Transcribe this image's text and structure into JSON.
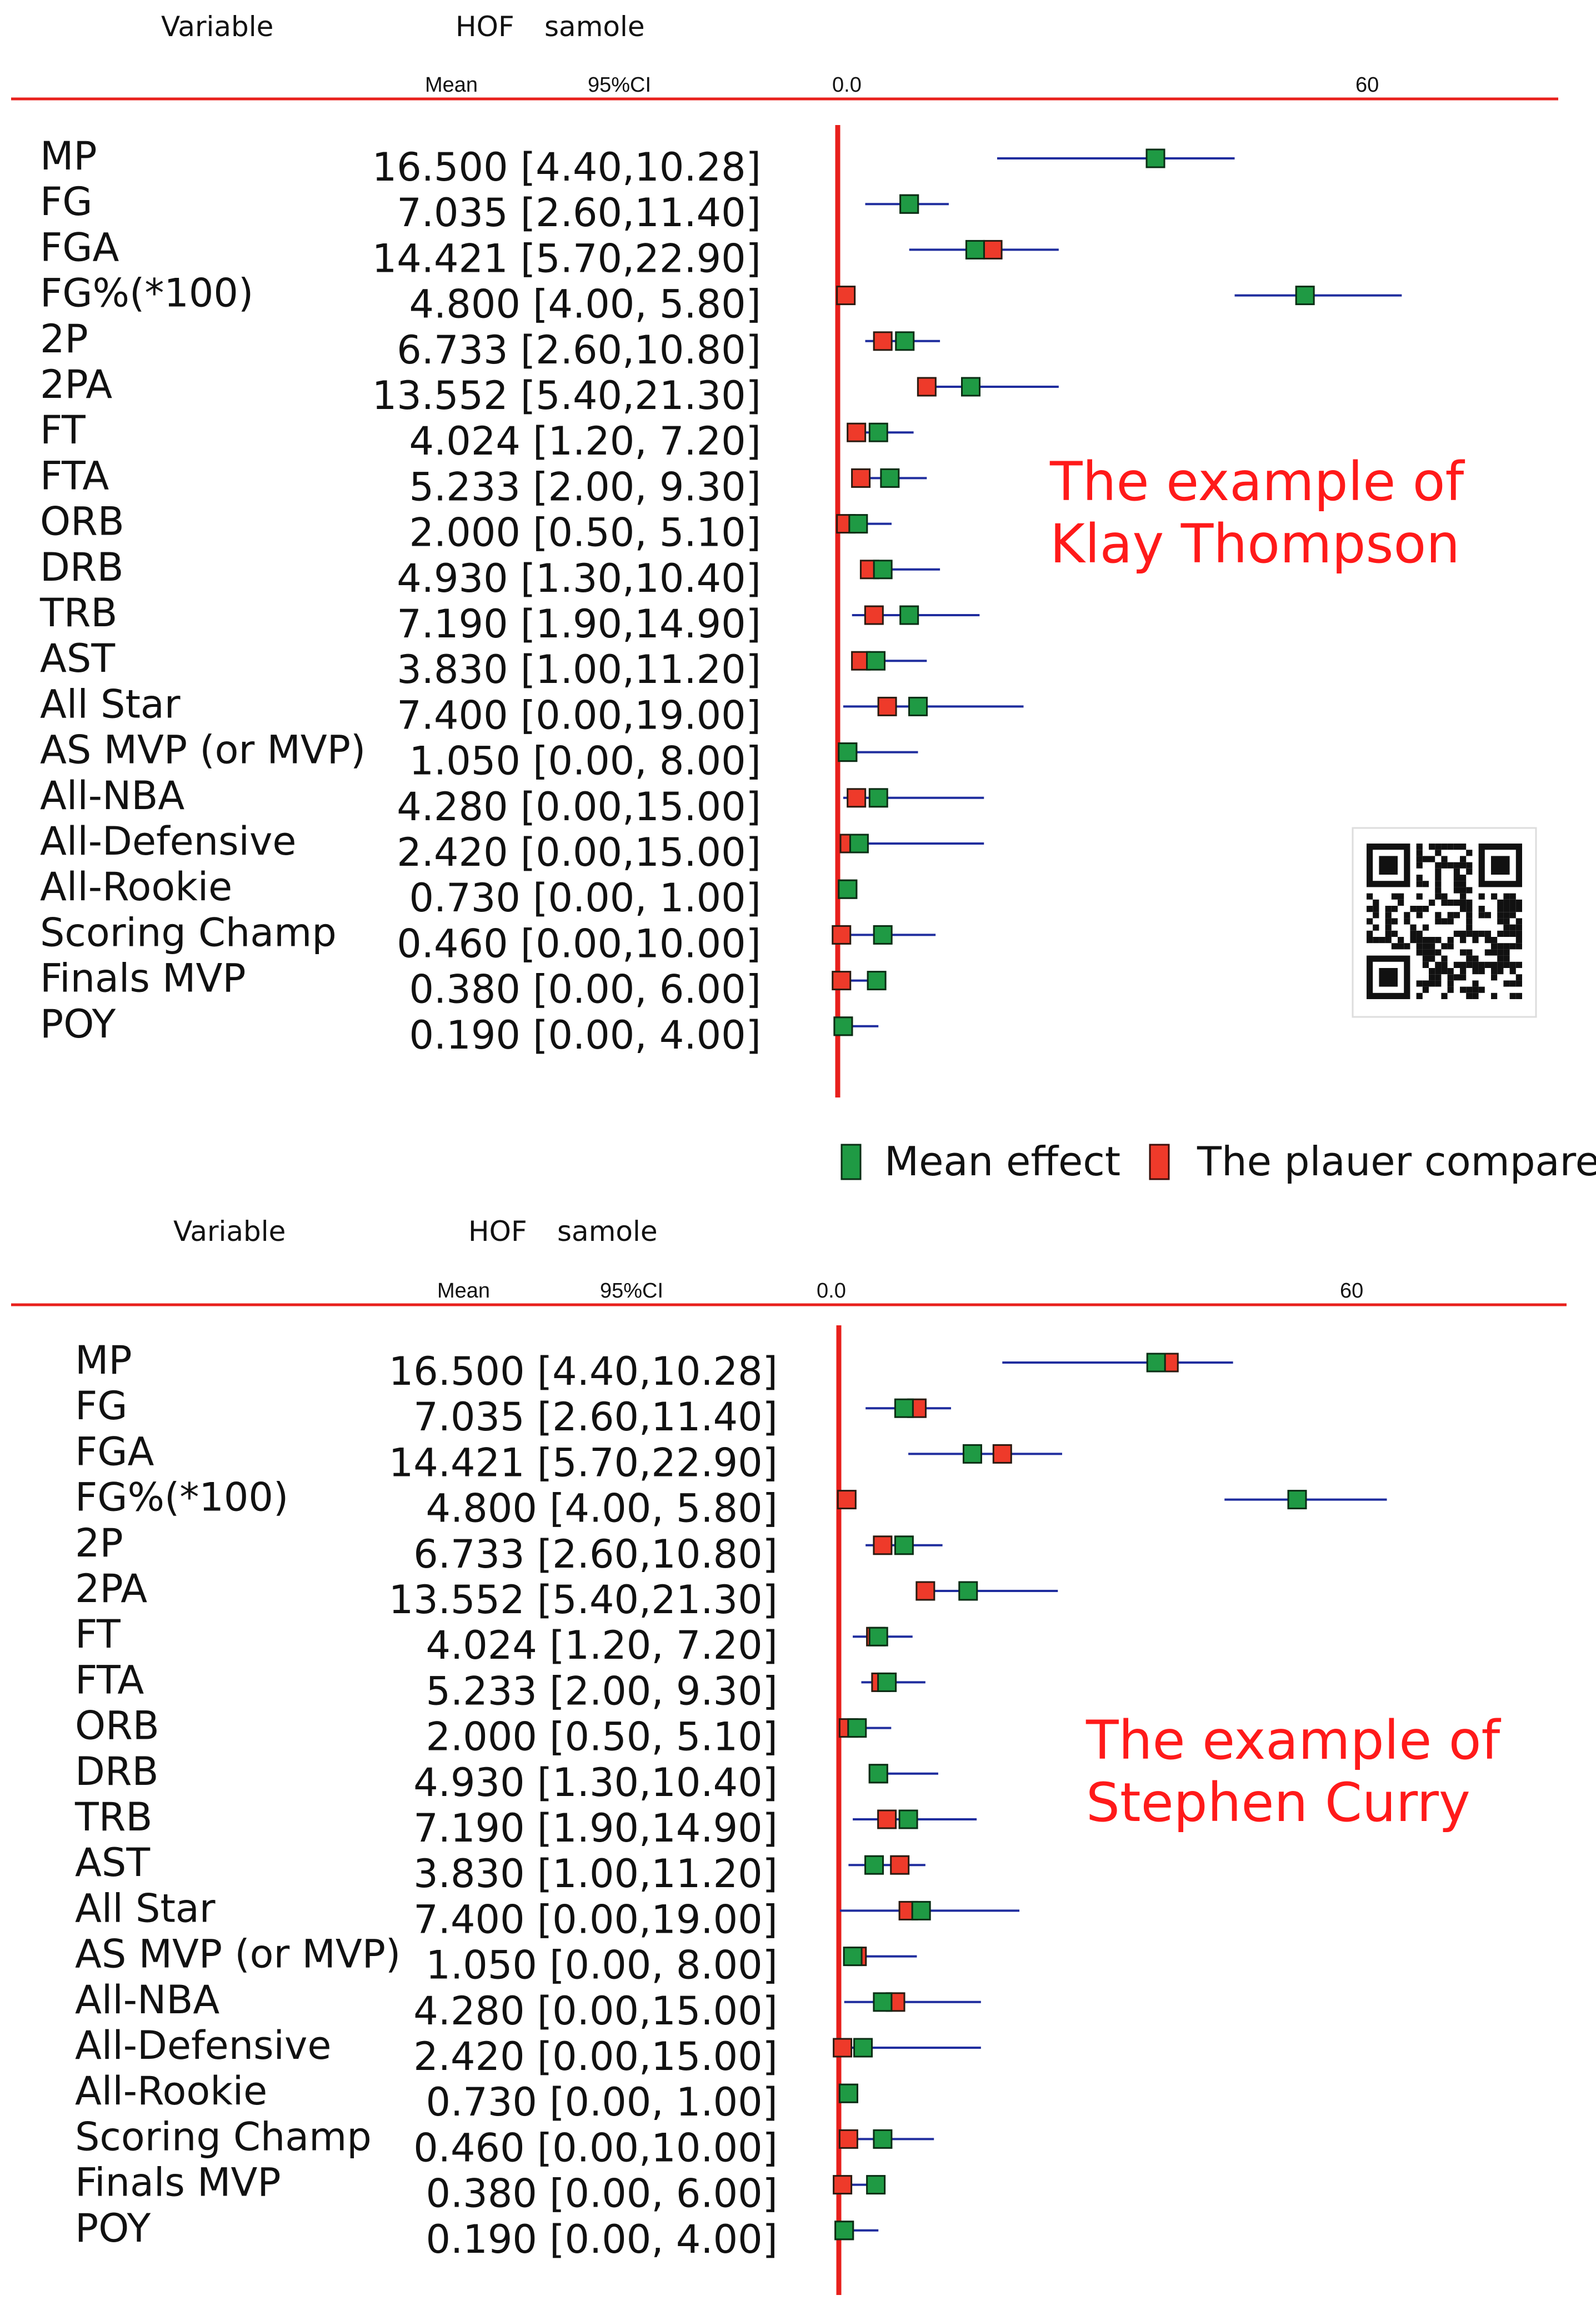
{
  "legend": {
    "mean_label": "Mean effect",
    "player_label": "The plauer compared",
    "mean_color": "#1f9a44",
    "player_color": "#ee3a2a"
  },
  "colors": {
    "zero_line": "#e8201c",
    "ci_line": "#1f2d9e",
    "header_rule": "#e8201c"
  },
  "icons": {
    "qr": "qr-code-icon"
  },
  "chart_data": [
    {
      "type": "forest",
      "annotation": [
        "The example of",
        "Klay Thompson"
      ],
      "header": {
        "col1": "Variable",
        "col2": "HOF",
        "col3": "samole",
        "mean": "Mean",
        "ci": "95%CI",
        "tick_left": "0.0",
        "tick_right": "60"
      },
      "xlim": [
        0,
        60
      ],
      "rows": [
        {
          "variable": "MP",
          "value": "16.500 [4.40,10.28]",
          "ci": [
            18,
            45
          ],
          "mean": 36,
          "player": 36
        },
        {
          "variable": "FG",
          "value": "7.035 [2.60,11.40]",
          "ci": [
            3,
            12.5
          ],
          "mean": 8,
          "player": 8
        },
        {
          "variable": "FGA",
          "value": "14.421 [5.70,22.90]",
          "ci": [
            8,
            25
          ],
          "mean": 15.5,
          "player": 17.5
        },
        {
          "variable": "FG%(*100)",
          "value": "4.800 [4.00,  5.80]",
          "ci": [
            45,
            64
          ],
          "mean": 53,
          "player": 0.8
        },
        {
          "variable": "2P",
          "value": "6.733 [2.60,10.80]",
          "ci": [
            3,
            11.5
          ],
          "mean": 7.5,
          "player": 5
        },
        {
          "variable": "2PA",
          "value": "13.552 [5.40,21.30]",
          "ci": [
            9.5,
            25
          ],
          "mean": 15,
          "player": 10
        },
        {
          "variable": "FT",
          "value": "4.024 [1.20,  7.20]",
          "ci": [
            1.5,
            8.5
          ],
          "mean": 4.5,
          "player": 2
        },
        {
          "variable": "FTA",
          "value": "5.233 [2.00,  9.30]",
          "ci": [
            2,
            10
          ],
          "mean": 5.8,
          "player": 2.5
        },
        {
          "variable": "ORB",
          "value": "2.000 [0.50,  5.10]",
          "ci": [
            0.5,
            6
          ],
          "mean": 2.2,
          "player": 0.8
        },
        {
          "variable": "DRB",
          "value": "4.930 [1.30,10.40]",
          "ci": [
            2.5,
            11.5
          ],
          "mean": 5,
          "player": 3.5
        },
        {
          "variable": "TRB",
          "value": "7.190 [1.90,14.90]",
          "ci": [
            1.5,
            16
          ],
          "mean": 8,
          "player": 4
        },
        {
          "variable": "AST",
          "value": "3.830 [1.00,11.20]",
          "ci": [
            1.5,
            10
          ],
          "mean": 4.2,
          "player": 2.5
        },
        {
          "variable": "All Star",
          "value": "7.400 [0.00,19.00]",
          "ci": [
            0.5,
            21
          ],
          "mean": 9,
          "player": 5.5
        },
        {
          "variable": "AS MVP (or MVP)",
          "value": "1.050 [0.00,  8.00]",
          "ci": [
            0,
            9
          ],
          "mean": 1,
          "player": 1
        },
        {
          "variable": "All-NBA",
          "value": "4.280 [0.00,15.00]",
          "ci": [
            0.5,
            16.5
          ],
          "mean": 4.5,
          "player": 2
        },
        {
          "variable": "All-Defensive",
          "value": "2.420 [0.00,15.00]",
          "ci": [
            0.5,
            16.5
          ],
          "mean": 2.3,
          "player": 1.2
        },
        {
          "variable": "All-Rookie",
          "value": "0.730 [0.00,  1.00]",
          "ci": [
            0,
            2
          ],
          "mean": 1,
          "player": 1
        },
        {
          "variable": "Scoring Champ",
          "value": "0.460 [0.00,10.00]",
          "ci": [
            0,
            11
          ],
          "mean": 5,
          "player": 0.3
        },
        {
          "variable": "Finals MVP",
          "value": "0.380 [0.00,  6.00]",
          "ci": [
            0,
            4
          ],
          "mean": 4.3,
          "player": 0.3
        },
        {
          "variable": "POY",
          "value": "0.190 [0.00,  4.00]",
          "ci": [
            0,
            4.5
          ],
          "mean": 0.5,
          "player": 0.5
        }
      ]
    },
    {
      "type": "forest",
      "annotation": [
        "The example of",
        "Stephen Curry"
      ],
      "header": {
        "col1": "Variable",
        "col2": "HOF",
        "col3": "samole",
        "mean": "Mean",
        "ci": "95%CI",
        "tick_left": "0.0",
        "tick_right": "60"
      },
      "xlim": [
        0,
        60
      ],
      "rows": [
        {
          "variable": "MP",
          "value": "16.500 [4.40,10.28]",
          "ci": [
            19,
            46
          ],
          "mean": 37,
          "player": 38.5
        },
        {
          "variable": "FG",
          "value": "7.035 [2.60,11.40]",
          "ci": [
            3,
            13
          ],
          "mean": 7.5,
          "player": 9
        },
        {
          "variable": "FGA",
          "value": "14.421 [5.70,22.90]",
          "ci": [
            8,
            26
          ],
          "mean": 15.5,
          "player": 19
        },
        {
          "variable": "FG%(*100)",
          "value": "4.800 [4.00,  5.80]",
          "ci": [
            45,
            64
          ],
          "mean": 53.5,
          "player": 0.8
        },
        {
          "variable": "2P",
          "value": "6.733 [2.60,10.80]",
          "ci": [
            3,
            12
          ],
          "mean": 7.5,
          "player": 5
        },
        {
          "variable": "2PA",
          "value": "13.552 [5.40,21.30]",
          "ci": [
            9.5,
            25.5
          ],
          "mean": 15,
          "player": 10
        },
        {
          "variable": "FT",
          "value": "4.024 [1.20,  7.20]",
          "ci": [
            1.5,
            8.5
          ],
          "mean": 4.5,
          "player": 4.2
        },
        {
          "variable": "FTA",
          "value": "5.233 [2.00,  9.30]",
          "ci": [
            2.5,
            10
          ],
          "mean": 5.5,
          "player": 4.8
        },
        {
          "variable": "ORB",
          "value": "2.000 [0.50,  5.10]",
          "ci": [
            0.5,
            6
          ],
          "mean": 2,
          "player": 1
        },
        {
          "variable": "DRB",
          "value": "4.930 [1.30,10.40]",
          "ci": [
            4,
            11.5
          ],
          "mean": 4.5,
          "player": 4.5
        },
        {
          "variable": "TRB",
          "value": "7.190 [1.90,14.90]",
          "ci": [
            1.5,
            16
          ],
          "mean": 8,
          "player": 5.5
        },
        {
          "variable": "AST",
          "value": "3.830 [1.00,11.20]",
          "ci": [
            1,
            10
          ],
          "mean": 4,
          "player": 7
        },
        {
          "variable": "All Star",
          "value": "7.400 [0.00,19.00]",
          "ci": [
            0,
            21
          ],
          "mean": 9.5,
          "player": 8
        },
        {
          "variable": "AS MVP (or MVP)",
          "value": "1.050 [0.00,  8.00]",
          "ci": [
            0.5,
            9
          ],
          "mean": 1.5,
          "player": 2
        },
        {
          "variable": "All-NBA",
          "value": "4.280 [0.00,15.00]",
          "ci": [
            0.5,
            16.5
          ],
          "mean": 5,
          "player": 6.5
        },
        {
          "variable": "All-Defensive",
          "value": "2.420 [0.00,15.00]",
          "ci": [
            0,
            16.5
          ],
          "mean": 2.7,
          "player": 0.3
        },
        {
          "variable": "All-Rookie",
          "value": "0.730 [0.00,  1.00]",
          "ci": [
            0,
            2
          ],
          "mean": 1,
          "player": 1
        },
        {
          "variable": "Scoring Champ",
          "value": "0.460 [0.00,10.00]",
          "ci": [
            0,
            11
          ],
          "mean": 5,
          "player": 1
        },
        {
          "variable": "Finals MVP",
          "value": "0.380 [0.00,  6.00]",
          "ci": [
            0,
            4
          ],
          "mean": 4.2,
          "player": 0.3
        },
        {
          "variable": "POY",
          "value": "0.190 [0.00,  4.00]",
          "ci": [
            0,
            4.5
          ],
          "mean": 0.5,
          "player": 0.5
        }
      ]
    }
  ]
}
